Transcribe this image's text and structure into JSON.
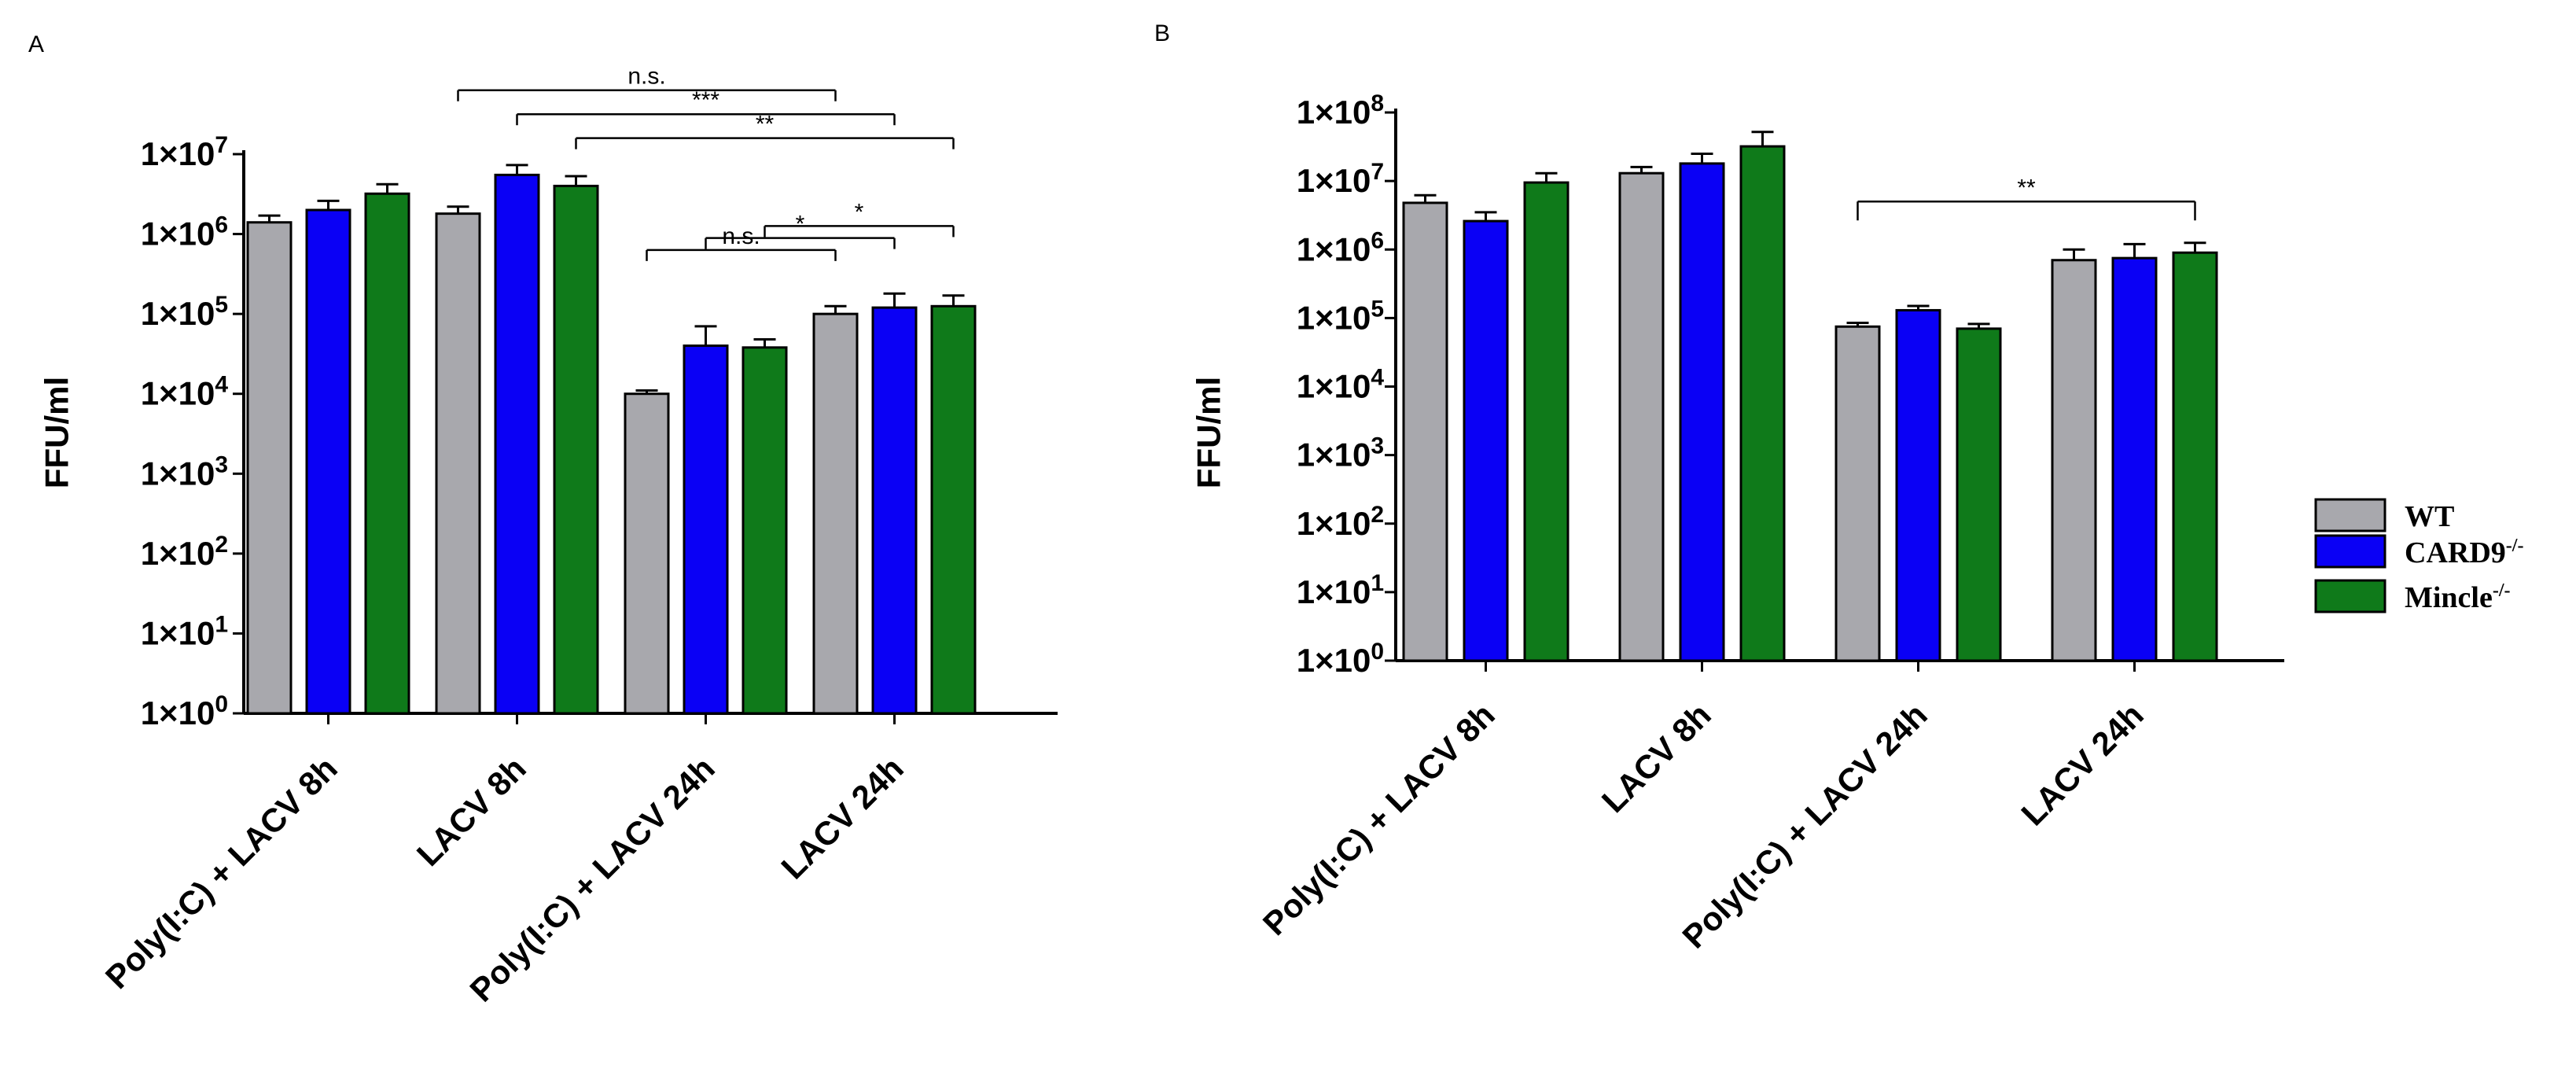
{
  "colors": {
    "WT": "#a8a8ad",
    "CARD9": "#0a00f5",
    "Mincle": "#0f7a1a",
    "axis": "#000000"
  },
  "legend": {
    "items": [
      {
        "label": "WT",
        "sup": "",
        "color_key": "WT"
      },
      {
        "label": "CARD9",
        "sup": "-/-",
        "color_key": "CARD9"
      },
      {
        "label": "Mincle",
        "sup": "-/-",
        "color_key": "Mincle"
      }
    ]
  },
  "chart_data": [
    {
      "panel": "A",
      "type": "bar",
      "scale": "log10",
      "ylabel": "FFU/ml",
      "ylim": [
        1,
        10000000
      ],
      "yticks": [
        {
          "exp": 0,
          "label": "1×10",
          "sup": "0"
        },
        {
          "exp": 1,
          "label": "1×10",
          "sup": "1"
        },
        {
          "exp": 2,
          "label": "1×10",
          "sup": "2"
        },
        {
          "exp": 3,
          "label": "1×10",
          "sup": "3"
        },
        {
          "exp": 4,
          "label": "1×10",
          "sup": "4"
        },
        {
          "exp": 5,
          "label": "1×10",
          "sup": "5"
        },
        {
          "exp": 6,
          "label": "1×10",
          "sup": "6"
        },
        {
          "exp": 7,
          "label": "1×10",
          "sup": "7"
        }
      ],
      "categories": [
        "Poly(I:C) + LACV 8h",
        "LACV 8h",
        "Poly(I:C) + LACV 24h",
        "LACV  24h"
      ],
      "series": [
        {
          "name": "WT",
          "values": [
            1400000,
            1800000,
            10000,
            100000
          ],
          "errors": [
            1700000,
            2200000,
            11000,
            125000
          ]
        },
        {
          "name": "CARD9",
          "values": [
            2000000,
            5500000,
            40000,
            120000
          ],
          "errors": [
            2600000,
            7300000,
            70000,
            180000
          ]
        },
        {
          "name": "Mincle",
          "values": [
            3200000,
            4000000,
            38000,
            125000
          ],
          "errors": [
            4200000,
            5300000,
            48000,
            170000
          ]
        }
      ],
      "significance": [
        {
          "label": "n.s.",
          "from": [
            1,
            0
          ],
          "to": [
            3,
            0
          ],
          "y_exp": 7.8
        },
        {
          "label": "***",
          "from": [
            1,
            1
          ],
          "to": [
            3,
            1
          ],
          "y_exp": 7.5
        },
        {
          "label": "**",
          "from": [
            1,
            2
          ],
          "to": [
            3,
            2
          ],
          "y_exp": 7.2
        },
        {
          "label": "n.s.",
          "from": [
            2,
            0
          ],
          "to": [
            3,
            0
          ],
          "y_exp": 5.8
        },
        {
          "label": "*",
          "from": [
            2,
            1
          ],
          "to": [
            3,
            1
          ],
          "y_exp": 5.95
        },
        {
          "label": "*",
          "from": [
            2,
            2
          ],
          "to": [
            3,
            2
          ],
          "y_exp": 6.1
        }
      ]
    },
    {
      "panel": "B",
      "type": "bar",
      "scale": "log10",
      "ylabel": "FFU/ml",
      "ylim": [
        1,
        100000000
      ],
      "yticks": [
        {
          "exp": 0,
          "label": "1×10",
          "sup": "0"
        },
        {
          "exp": 1,
          "label": "1×10",
          "sup": "1"
        },
        {
          "exp": 2,
          "label": "1×10",
          "sup": "2"
        },
        {
          "exp": 3,
          "label": "1×10",
          "sup": "3"
        },
        {
          "exp": 4,
          "label": "1×10",
          "sup": "4"
        },
        {
          "exp": 5,
          "label": "1×10",
          "sup": "5"
        },
        {
          "exp": 6,
          "label": "1×10",
          "sup": "6"
        },
        {
          "exp": 7,
          "label": "1×10",
          "sup": "7"
        },
        {
          "exp": 8,
          "label": "1×10",
          "sup": "8"
        }
      ],
      "categories": [
        "Poly(I:C) + LACV 8h",
        "LACV 8h",
        "Poly(I:C) + LACV 24h",
        "LACV 24h"
      ],
      "series": [
        {
          "name": "WT",
          "values": [
            4800000,
            13000000,
            75000,
            700000
          ],
          "errors": [
            6200000,
            16000000,
            85000,
            1000000
          ]
        },
        {
          "name": "CARD9",
          "values": [
            2600000,
            18000000,
            130000,
            750000
          ],
          "errors": [
            3500000,
            25000000,
            150000,
            1200000
          ]
        },
        {
          "name": "Mincle",
          "values": [
            9500000,
            32000000,
            70000,
            900000
          ],
          "errors": [
            13000000,
            52000000,
            82000,
            1250000
          ]
        }
      ],
      "significance": [
        {
          "label": "**",
          "from": [
            2,
            0
          ],
          "to": [
            3,
            2
          ],
          "y_exp": 6.7,
          "tick_down": true
        }
      ]
    }
  ]
}
